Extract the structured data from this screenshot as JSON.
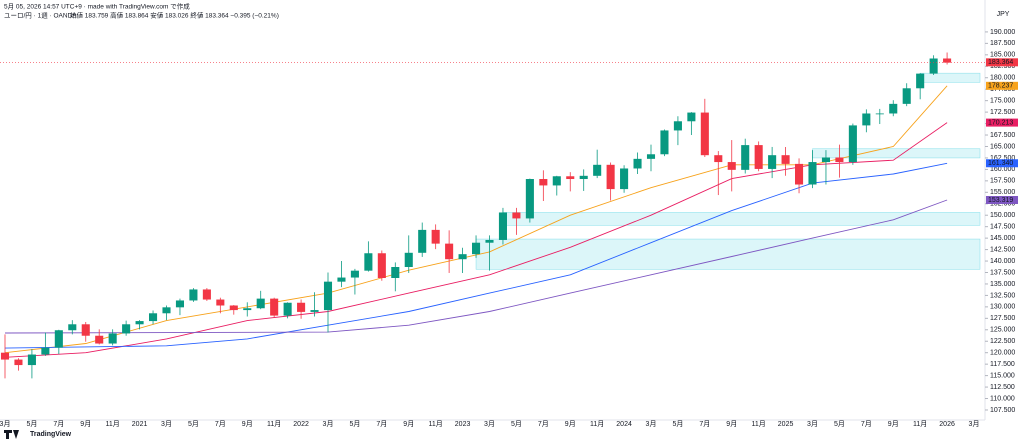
{
  "header": {
    "line1": "5月 05, 2026 14:57 UTC+9 · made with TradingView.com で作成",
    "symbol": "ユーロ/円 · 1週 · OANDA",
    "ohlc_text": "始値 183.759  高値 183.864  安値 183.026  終値 183.364  −0.395 (−0.21%)"
  },
  "currency": "JPY",
  "logo": "TradingView",
  "chart_data": {
    "type": "candlestick",
    "up_color": "#089981",
    "down_color": "#f23645",
    "categories": [
      "3月",
      null,
      "5月",
      null,
      "7月",
      null,
      "9月",
      null,
      "11月",
      null,
      "2021",
      null,
      "3月",
      null,
      "5月",
      null,
      "7月",
      null,
      "9月",
      null,
      "11月",
      null,
      "2022",
      null,
      "3月",
      null,
      "5月",
      null,
      "7月",
      null,
      "9月",
      null,
      "11月",
      null,
      "2023",
      null,
      "3月",
      null,
      "5月",
      null,
      "7月",
      null,
      "9月",
      null,
      "11月",
      null,
      "2024",
      null,
      "3月",
      null,
      "5月",
      null,
      "7月",
      null,
      "9月",
      null,
      "11月",
      null,
      "2025",
      null,
      "3月",
      null,
      "5月",
      null,
      "7月",
      null,
      "9月",
      null,
      "11月",
      null,
      "2026",
      null,
      "3月"
    ],
    "ohlc": [
      [
        120.0,
        124.0,
        114.4,
        118.5
      ],
      [
        118.5,
        118.8,
        116.1,
        117.3
      ],
      [
        117.3,
        120.8,
        114.4,
        119.6
      ],
      [
        119.6,
        124.4,
        119.3,
        121.1
      ],
      [
        121.1,
        125.0,
        119.7,
        124.9
      ],
      [
        124.9,
        127.1,
        124.0,
        126.2
      ],
      [
        126.2,
        126.7,
        122.4,
        123.7
      ],
      [
        123.7,
        125.1,
        121.8,
        122.0
      ],
      [
        122.0,
        125.1,
        121.6,
        124.2
      ],
      [
        124.2,
        127.0,
        123.7,
        126.2
      ],
      [
        126.2,
        127.1,
        125.1,
        126.9
      ],
      [
        126.9,
        129.2,
        126.2,
        128.6
      ],
      [
        128.6,
        130.3,
        127.1,
        129.9
      ],
      [
        129.9,
        131.8,
        128.2,
        131.4
      ],
      [
        131.4,
        134.1,
        131.1,
        133.8
      ],
      [
        133.8,
        134.1,
        131.3,
        131.6
      ],
      [
        131.6,
        132.0,
        128.6,
        130.3
      ],
      [
        130.3,
        130.4,
        128.3,
        129.3
      ],
      [
        129.3,
        131.0,
        127.9,
        129.7
      ],
      [
        129.7,
        133.5,
        129.5,
        131.8
      ],
      [
        131.8,
        132.0,
        127.6,
        128.1
      ],
      [
        128.1,
        131.0,
        127.5,
        130.9
      ],
      [
        130.9,
        131.6,
        127.4,
        128.9
      ],
      [
        128.9,
        133.2,
        127.9,
        129.3
      ],
      [
        129.3,
        137.5,
        124.4,
        135.5
      ],
      [
        135.5,
        140.0,
        134.3,
        136.4
      ],
      [
        136.4,
        138.3,
        132.7,
        137.9
      ],
      [
        137.9,
        144.3,
        137.7,
        141.7
      ],
      [
        141.7,
        142.3,
        135.7,
        136.3
      ],
      [
        136.3,
        139.7,
        133.4,
        138.7
      ],
      [
        138.7,
        145.6,
        137.4,
        141.8
      ],
      [
        141.8,
        148.4,
        140.9,
        146.8
      ],
      [
        146.8,
        148.0,
        142.6,
        143.8
      ],
      [
        143.8,
        146.7,
        137.4,
        140.4
      ],
      [
        140.4,
        142.9,
        137.4,
        141.5
      ],
      [
        141.5,
        145.6,
        140.7,
        144.0
      ],
      [
        144.0,
        145.6,
        137.9,
        144.6
      ],
      [
        144.6,
        151.6,
        143.6,
        150.6
      ],
      [
        150.6,
        151.6,
        145.7,
        149.3
      ],
      [
        149.3,
        158.0,
        148.4,
        157.9
      ],
      [
        157.9,
        159.8,
        153.1,
        156.5
      ],
      [
        156.5,
        158.6,
        154.3,
        158.5
      ],
      [
        158.5,
        159.4,
        155.2,
        157.9
      ],
      [
        157.9,
        160.0,
        155.3,
        158.6
      ],
      [
        158.6,
        164.3,
        158.1,
        161.0
      ],
      [
        161.0,
        161.5,
        153.2,
        155.7
      ],
      [
        155.7,
        160.9,
        154.9,
        160.2
      ],
      [
        160.2,
        163.7,
        159.0,
        162.3
      ],
      [
        162.3,
        165.4,
        159.6,
        163.3
      ],
      [
        163.3,
        168.7,
        162.9,
        168.5
      ],
      [
        168.5,
        171.6,
        165.3,
        170.5
      ],
      [
        170.5,
        172.5,
        167.5,
        172.4
      ],
      [
        172.4,
        175.4,
        162.7,
        163.1
      ],
      [
        163.1,
        164.0,
        154.4,
        161.6
      ],
      [
        161.6,
        166.4,
        155.2,
        159.9
      ],
      [
        159.9,
        166.7,
        159.1,
        165.3
      ],
      [
        165.3,
        166.1,
        159.6,
        160.1
      ],
      [
        160.1,
        164.9,
        158.1,
        163.1
      ],
      [
        163.1,
        164.9,
        158.6,
        161.2
      ],
      [
        161.2,
        162.4,
        154.8,
        156.7
      ],
      [
        156.7,
        164.2,
        155.9,
        161.6
      ],
      [
        161.6,
        164.2,
        156.7,
        162.6
      ],
      [
        162.6,
        165.4,
        158.2,
        161.6
      ],
      [
        161.6,
        170.0,
        161.0,
        169.6
      ],
      [
        169.6,
        173.1,
        168.1,
        172.2
      ],
      [
        172.2,
        173.2,
        169.9,
        172.2
      ],
      [
        172.2,
        175.1,
        171.6,
        174.3
      ],
      [
        174.3,
        178.8,
        173.8,
        177.7
      ],
      [
        177.7,
        181.0,
        175.3,
        180.9
      ],
      [
        180.9,
        184.9,
        180.6,
        184.2
      ],
      [
        184.2,
        185.5,
        182.9,
        183.3
      ],
      null,
      null
    ],
    "ma_lines": [
      {
        "color": "#f7a21b",
        "x": [
          0,
          6,
          12,
          18,
          24,
          30,
          36,
          42,
          48,
          54,
          60,
          66,
          70
        ],
        "values": [
          120,
          122,
          127,
          130,
          133,
          138,
          142,
          150,
          156,
          161,
          161,
          165,
          178.237
        ]
      },
      {
        "color": "#e91e63",
        "x": [
          0,
          6,
          12,
          18,
          24,
          30,
          36,
          42,
          48,
          54,
          60,
          66,
          70
        ],
        "values": [
          119,
          120,
          123,
          127,
          129,
          133,
          137,
          143,
          150,
          158,
          161,
          162,
          170.213
        ]
      },
      {
        "color": "#2962ff",
        "x": [
          0,
          12,
          18,
          24,
          30,
          36,
          42,
          48,
          54,
          60,
          66,
          70
        ],
        "values": [
          121,
          121.5,
          123,
          126,
          129,
          133,
          137,
          144,
          151,
          157,
          159,
          161.34
        ]
      },
      {
        "color": "#7e57c2",
        "x": [
          0,
          24,
          30,
          36,
          42,
          48,
          54,
          60,
          66,
          70
        ],
        "values": [
          124.3,
          124.5,
          126,
          129,
          133,
          137,
          141,
          145,
          149,
          153.319
        ]
      }
    ],
    "zones": [
      {
        "start": 37,
        "low": 147.8,
        "high": 150.6
      },
      {
        "start": 35,
        "low": 138.2,
        "high": 144.8
      },
      {
        "start": 60,
        "low": 162.5,
        "high": 164.5
      },
      {
        "start": 68,
        "low": 179,
        "high": 181
      }
    ],
    "price_tags": [
      {
        "value": 183.364,
        "label": "183.364",
        "color": "#f23645"
      },
      {
        "value": 178.237,
        "label": "178.237",
        "color": "#f7a21b"
      },
      {
        "value": 170.213,
        "label": "170.213",
        "color": "#e91e63"
      },
      {
        "value": 161.34,
        "label": "161.340",
        "color": "#2962ff"
      },
      {
        "value": 153.319,
        "label": "153.319",
        "color": "#7e57c2"
      }
    ],
    "ylim": [
      105.75,
      192.6
    ],
    "yticks": [
      {
        "value": 107.5,
        "label": "107.500"
      },
      {
        "value": 110,
        "label": "110.000"
      },
      {
        "value": 112.5,
        "label": "112.500"
      },
      {
        "value": 115,
        "label": "115.000"
      },
      {
        "value": 117.5,
        "label": "117.500"
      },
      {
        "value": 120,
        "label": "120.000"
      },
      {
        "value": 122.5,
        "label": "122.500"
      },
      {
        "value": 125,
        "label": "125.000"
      },
      {
        "value": 127.5,
        "label": "127.500"
      },
      {
        "value": 130,
        "label": "130.000"
      },
      {
        "value": 132.5,
        "label": "132.500"
      },
      {
        "value": 135,
        "label": "135.000"
      },
      {
        "value": 137.5,
        "label": "137.500"
      },
      {
        "value": 140,
        "label": "140.000"
      },
      {
        "value": 142.5,
        "label": "142.500"
      },
      {
        "value": 145,
        "label": "145.000"
      },
      {
        "value": 147.5,
        "label": "147.500"
      },
      {
        "value": 150,
        "label": "150.000"
      },
      {
        "value": 152.5,
        "label": "152.500"
      },
      {
        "value": 155,
        "label": "155.000"
      },
      {
        "value": 157.5,
        "label": "157.500"
      },
      {
        "value": 160,
        "label": "160.000"
      },
      {
        "value": 162.5,
        "label": "162.500"
      },
      {
        "value": 165,
        "label": "165.000"
      },
      {
        "value": 167.5,
        "label": "167.500"
      },
      {
        "value": 170,
        "label": "170.000"
      },
      {
        "value": 172.5,
        "label": "172.500"
      },
      {
        "value": 175,
        "label": "175.000"
      },
      {
        "value": 177.5,
        "label": "177.500"
      },
      {
        "value": 180,
        "label": "180.000"
      },
      {
        "value": 182.5,
        "label": "182.500"
      },
      {
        "value": 185,
        "label": "185.000"
      },
      {
        "value": 187.5,
        "label": "187.500"
      },
      {
        "value": 190,
        "label": "190.000"
      }
    ],
    "grid": false
  }
}
